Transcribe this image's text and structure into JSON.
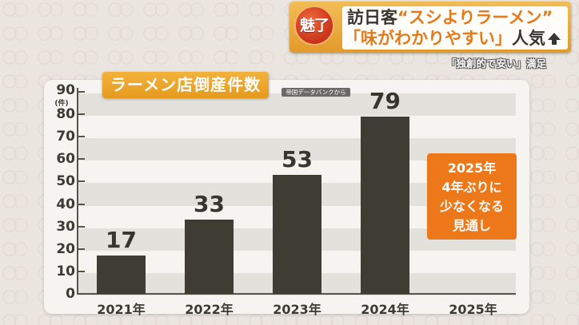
{
  "header": {
    "badge": "魅了",
    "line1_dark": "訪日客",
    "line1_orange": "“スシよりラーメン”",
    "line2_orange": "「味がわかりやすい」",
    "line2_dark": "人気",
    "arrow_icon": "up-arrow",
    "subtitle": "「独創的で安い」満足"
  },
  "chart_title": "ラーメン店倒産件数",
  "source": "帝国データバンクから",
  "note": {
    "lines": [
      "2025年",
      "4年ぶりに",
      "少なくなる",
      "見通し"
    ]
  },
  "colors": {
    "bar": "#3f3d33",
    "title_bg": "#eca424",
    "note_bg": "#ec781a",
    "badge_red": "#d9411e"
  },
  "chart_data": {
    "type": "bar",
    "title": "ラーメン店倒産件数",
    "xlabel": "",
    "ylabel": "(件)",
    "ylim": [
      0,
      90
    ],
    "yticks": [
      0,
      10,
      20,
      30,
      40,
      50,
      60,
      70,
      80,
      90
    ],
    "categories": [
      "2021年",
      "2022年",
      "2023年",
      "2024年",
      "2025年"
    ],
    "values": [
      17,
      33,
      53,
      79,
      null
    ],
    "value_labels": [
      "17",
      "33",
      "53",
      "79",
      ""
    ],
    "grid": "alternating horizontal bands",
    "source": "帝国データバンクから",
    "annotation": "2025年 4年ぶりに 少なくなる 見通し"
  }
}
